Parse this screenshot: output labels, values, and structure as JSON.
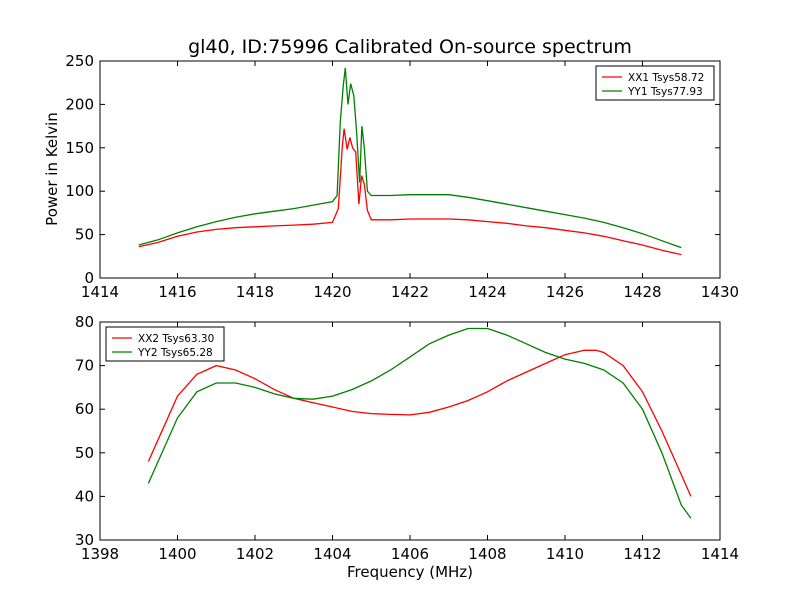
{
  "title": "gl40, ID:75996 Calibrated On-source spectrum",
  "colors": {
    "red": "#ff0000",
    "green": "#008000"
  },
  "chart_data": [
    {
      "type": "line",
      "xlabel": "",
      "ylabel": "Power in Kelvin",
      "xlim": [
        1414,
        1430
      ],
      "ylim": [
        0,
        250
      ],
      "xticks": [
        "1414",
        "1416",
        "1418",
        "1420",
        "1422",
        "1424",
        "1426",
        "1428",
        "1430"
      ],
      "yticks": [
        "0",
        "50",
        "100",
        "150",
        "200",
        "250"
      ],
      "legend_position": "top-right",
      "series": [
        {
          "name": "XX1 Tsys58.72",
          "color": "#ff0000",
          "points": [
            [
              1415.0,
              36
            ],
            [
              1415.5,
              41
            ],
            [
              1416.0,
              48
            ],
            [
              1416.5,
              53
            ],
            [
              1417.0,
              56
            ],
            [
              1417.5,
              58
            ],
            [
              1418.0,
              59
            ],
            [
              1418.5,
              60
            ],
            [
              1419.0,
              61
            ],
            [
              1419.5,
              62
            ],
            [
              1420.0,
              64
            ],
            [
              1420.15,
              80
            ],
            [
              1420.25,
              150
            ],
            [
              1420.3,
              172
            ],
            [
              1420.38,
              148
            ],
            [
              1420.45,
              162
            ],
            [
              1420.52,
              150
            ],
            [
              1420.6,
              145
            ],
            [
              1420.68,
              85
            ],
            [
              1420.75,
              118
            ],
            [
              1420.82,
              108
            ],
            [
              1420.9,
              78
            ],
            [
              1421.0,
              67
            ],
            [
              1421.5,
              67
            ],
            [
              1422.0,
              68
            ],
            [
              1422.5,
              68
            ],
            [
              1423.0,
              68
            ],
            [
              1423.5,
              67
            ],
            [
              1424.0,
              65
            ],
            [
              1424.5,
              63
            ],
            [
              1425.0,
              60
            ],
            [
              1425.5,
              58
            ],
            [
              1426.0,
              55
            ],
            [
              1426.5,
              52
            ],
            [
              1427.0,
              48
            ],
            [
              1427.5,
              43
            ],
            [
              1428.0,
              38
            ],
            [
              1428.5,
              32
            ],
            [
              1429.0,
              27
            ]
          ]
        },
        {
          "name": "YY1 Tsys77.93",
          "color": "#008000",
          "points": [
            [
              1415.0,
              38
            ],
            [
              1415.5,
              44
            ],
            [
              1416.0,
              52
            ],
            [
              1416.5,
              59
            ],
            [
              1417.0,
              65
            ],
            [
              1417.5,
              70
            ],
            [
              1418.0,
              74
            ],
            [
              1418.5,
              77
            ],
            [
              1419.0,
              80
            ],
            [
              1419.5,
              84
            ],
            [
              1420.0,
              88
            ],
            [
              1420.12,
              95
            ],
            [
              1420.2,
              180
            ],
            [
              1420.28,
              222
            ],
            [
              1420.33,
              242
            ],
            [
              1420.4,
              200
            ],
            [
              1420.47,
              224
            ],
            [
              1420.55,
              210
            ],
            [
              1420.62,
              170
            ],
            [
              1420.7,
              110
            ],
            [
              1420.76,
              175
            ],
            [
              1420.82,
              150
            ],
            [
              1420.9,
              100
            ],
            [
              1421.0,
              95
            ],
            [
              1421.5,
              95
            ],
            [
              1422.0,
              96
            ],
            [
              1422.5,
              96
            ],
            [
              1423.0,
              96
            ],
            [
              1423.5,
              93
            ],
            [
              1424.0,
              89
            ],
            [
              1424.5,
              85
            ],
            [
              1425.0,
              81
            ],
            [
              1425.5,
              77
            ],
            [
              1426.0,
              73
            ],
            [
              1426.5,
              69
            ],
            [
              1427.0,
              64
            ],
            [
              1427.5,
              58
            ],
            [
              1428.0,
              51
            ],
            [
              1428.5,
              43
            ],
            [
              1429.0,
              35
            ]
          ]
        }
      ]
    },
    {
      "type": "line",
      "xlabel": "Frequency (MHz)",
      "ylabel": "",
      "xlim": [
        1398,
        1414
      ],
      "ylim": [
        30,
        80
      ],
      "xticks": [
        "1398",
        "1400",
        "1402",
        "1404",
        "1406",
        "1408",
        "1410",
        "1412",
        "1414"
      ],
      "yticks": [
        "30",
        "40",
        "50",
        "60",
        "70",
        "80"
      ],
      "legend_position": "top-left",
      "series": [
        {
          "name": "XX2 Tsys63.30",
          "color": "#ff0000",
          "points": [
            [
              1399.25,
              48
            ],
            [
              1399.5,
              53
            ],
            [
              1400.0,
              63
            ],
            [
              1400.5,
              68
            ],
            [
              1401.0,
              70
            ],
            [
              1401.5,
              69
            ],
            [
              1402.0,
              67
            ],
            [
              1402.5,
              64.5
            ],
            [
              1403.0,
              62.5
            ],
            [
              1403.5,
              61.5
            ],
            [
              1404.0,
              60.5
            ],
            [
              1404.5,
              59.5
            ],
            [
              1405.0,
              59
            ],
            [
              1405.5,
              58.8
            ],
            [
              1406.0,
              58.7
            ],
            [
              1406.5,
              59.3
            ],
            [
              1407.0,
              60.5
            ],
            [
              1407.5,
              62
            ],
            [
              1408.0,
              64
            ],
            [
              1408.5,
              66.5
            ],
            [
              1409.0,
              68.5
            ],
            [
              1409.5,
              70.5
            ],
            [
              1410.0,
              72.5
            ],
            [
              1410.5,
              73.5
            ],
            [
              1410.8,
              73.5
            ],
            [
              1411.0,
              73
            ],
            [
              1411.5,
              70
            ],
            [
              1412.0,
              64
            ],
            [
              1412.5,
              55
            ],
            [
              1413.0,
              45
            ],
            [
              1413.25,
              40
            ]
          ]
        },
        {
          "name": "YY2 Tsys65.28",
          "color": "#008000",
          "points": [
            [
              1399.25,
              43
            ],
            [
              1399.5,
              48
            ],
            [
              1400.0,
              58
            ],
            [
              1400.5,
              64
            ],
            [
              1401.0,
              66
            ],
            [
              1401.5,
              66
            ],
            [
              1402.0,
              65
            ],
            [
              1402.5,
              63.5
            ],
            [
              1403.0,
              62.5
            ],
            [
              1403.5,
              62.3
            ],
            [
              1404.0,
              63
            ],
            [
              1404.5,
              64.5
            ],
            [
              1405.0,
              66.5
            ],
            [
              1405.5,
              69
            ],
            [
              1406.0,
              72
            ],
            [
              1406.5,
              75
            ],
            [
              1407.0,
              77
            ],
            [
              1407.5,
              78.5
            ],
            [
              1408.0,
              78.5
            ],
            [
              1408.5,
              77
            ],
            [
              1409.0,
              75
            ],
            [
              1409.5,
              73
            ],
            [
              1410.0,
              71.5
            ],
            [
              1410.5,
              70.5
            ],
            [
              1411.0,
              69
            ],
            [
              1411.5,
              66
            ],
            [
              1412.0,
              60
            ],
            [
              1412.5,
              50
            ],
            [
              1413.0,
              38
            ],
            [
              1413.25,
              35
            ]
          ]
        }
      ]
    }
  ]
}
